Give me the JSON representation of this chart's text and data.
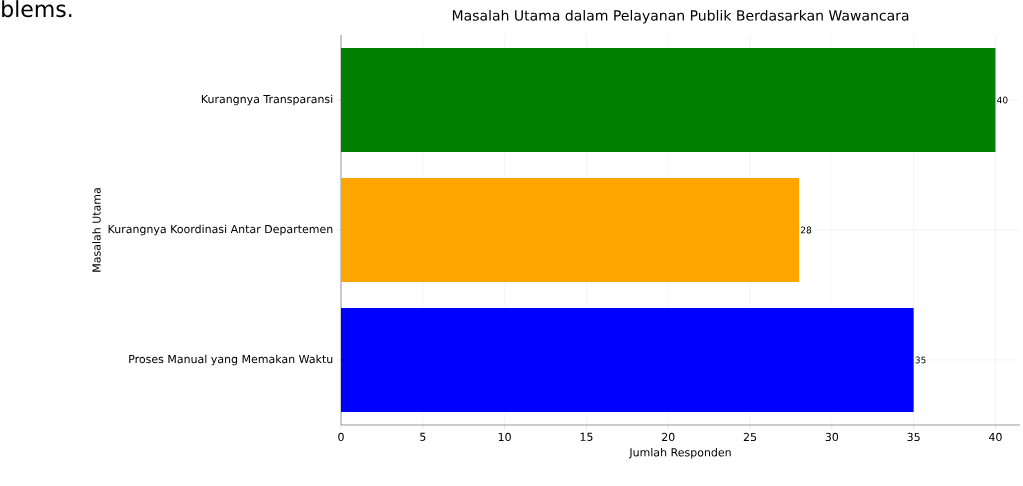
{
  "chart_data": {
    "type": "bar",
    "orientation": "horizontal",
    "title": "Masalah Utama dalam Pelayanan Publik Berdasarkan Wawancara",
    "xlabel": "Jumlah Responden",
    "ylabel": "Masalah Utama",
    "categories": [
      "Kurangnya Transparansi",
      "Kurangnya Koordinasi Antar Departemen",
      "Proses Manual yang Memakan Waktu"
    ],
    "values": [
      40,
      28,
      35
    ],
    "colors": [
      "#008000",
      "#ffa500",
      "#0000ff"
    ],
    "xlim": [
      0,
      41.5
    ],
    "xticks": [
      0,
      5,
      10,
      15,
      20,
      25,
      30,
      35,
      40
    ],
    "grid": true,
    "data_labels": true,
    "annotations": [
      "blems."
    ]
  }
}
